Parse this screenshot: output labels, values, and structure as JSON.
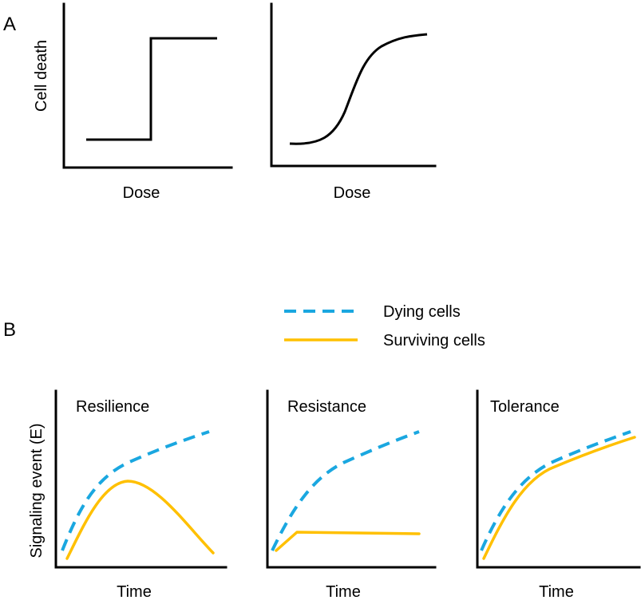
{
  "panel_a": {
    "letter": "A",
    "y_axis_label": "Cell death",
    "charts": [
      {
        "kind": "step",
        "x_label": "Dose"
      },
      {
        "kind": "sigmoid",
        "x_label": "Dose"
      }
    ]
  },
  "panel_b": {
    "letter": "B",
    "y_axis_label": "Signaling event (E)",
    "legend": {
      "dying": {
        "label": "Dying cells",
        "color": "#1aa7e0",
        "style": "dashed"
      },
      "surviving": {
        "label": "Surviving cells",
        "color": "#ffc000",
        "style": "solid"
      }
    },
    "charts": [
      {
        "title": "Resilience",
        "x_label": "Time"
      },
      {
        "title": "Resistance",
        "x_label": "Time"
      },
      {
        "title": "Tolerance",
        "x_label": "Time"
      }
    ]
  },
  "colors": {
    "axis": "#000000",
    "dying": "#1aa7e0",
    "surviving": "#ffc000"
  }
}
